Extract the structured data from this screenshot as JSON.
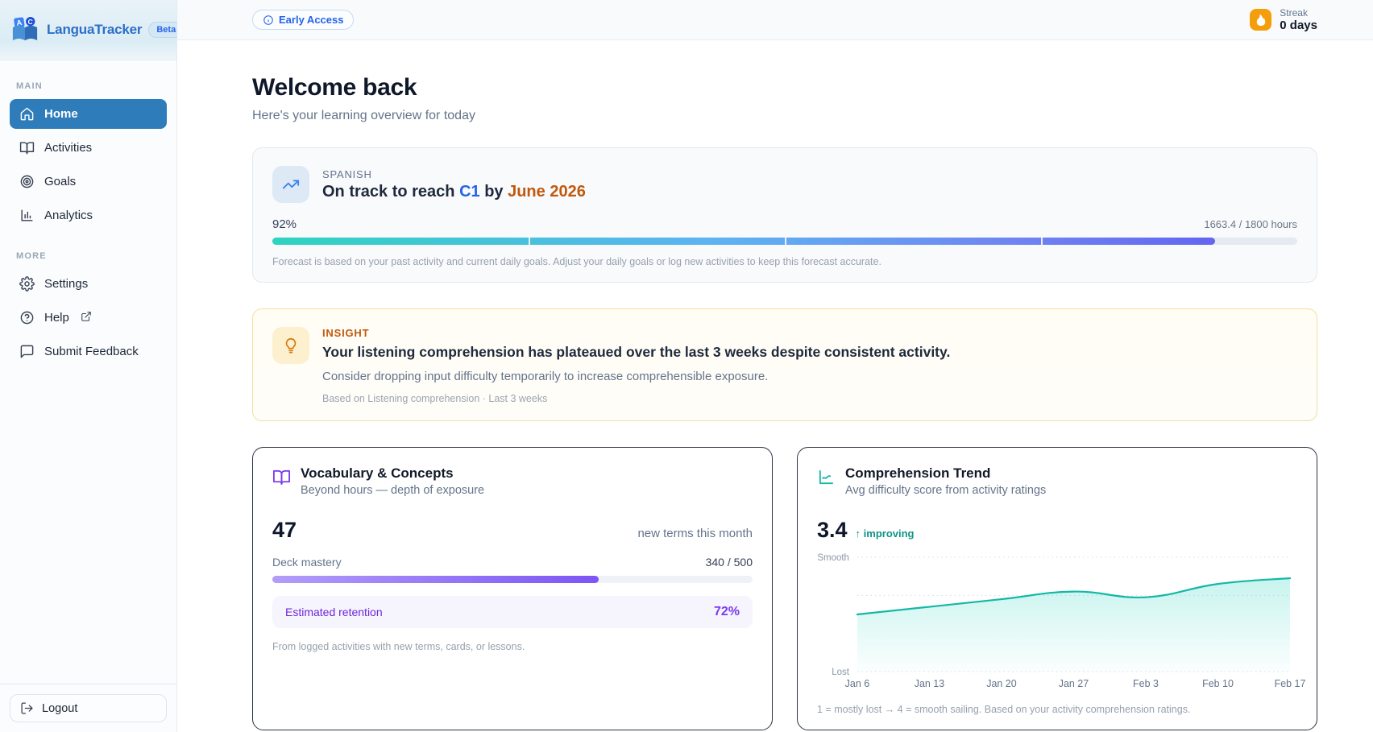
{
  "sidebar": {
    "brand": {
      "name": "LanguaTracker",
      "badge": "Beta"
    },
    "sections": [
      {
        "label": "MAIN",
        "items": [
          {
            "label": "Home"
          },
          {
            "label": "Activities"
          },
          {
            "label": "Goals"
          },
          {
            "label": "Analytics"
          }
        ]
      },
      {
        "label": "MORE",
        "items": [
          {
            "label": "Settings"
          },
          {
            "label": "Help"
          },
          {
            "label": "Submit Feedback"
          }
        ]
      }
    ],
    "logout_label": "Logout"
  },
  "topbar": {
    "early_access_label": "Early Access",
    "streak": {
      "label": "Streak",
      "value": "0 days"
    }
  },
  "header": {
    "title": "Welcome back",
    "subtitle": "Here's your learning overview for today"
  },
  "forecast": {
    "language": "SPANISH",
    "title_prefix": "On track to reach ",
    "level": "C1",
    "title_mid": " by ",
    "date": "June 2026",
    "percent": "92%",
    "percent_value": 92,
    "hours": "1663.4 / 1800 hours",
    "note": "Forecast is based on your past activity and current daily goals. Adjust your daily goals or log new activities to keep this forecast accurate."
  },
  "insight": {
    "label": "INSIGHT",
    "headline": "Your listening comprehension has plateaued over the last 3 weeks despite consistent activity.",
    "suggestion": "Consider dropping input difficulty temporarily to increase comprehensible exposure.",
    "meta": "Based on Listening comprehension · Last 3 weeks"
  },
  "vocabulary": {
    "title": "Vocabulary & Concepts",
    "subtitle": "Beyond hours — depth of exposure",
    "stat_value": "47",
    "stat_label": "new terms this month",
    "mastery_label": "Deck mastery",
    "mastery_value": "340 / 500",
    "mastery_percent": 68,
    "retention_label": "Estimated retention",
    "retention_value": "72%",
    "note": "From logged activities with new terms, cards, or lessons."
  },
  "trend": {
    "title": "Comprehension Trend",
    "subtitle": "Avg difficulty score from activity ratings",
    "stat_value": "3.4",
    "stat_badge": "↑ improving",
    "note": "1 = mostly lost → 4 = smooth sailing. Based on your activity comprehension ratings."
  },
  "chart_data": {
    "type": "area",
    "x": [
      "Jan 6",
      "Jan 13",
      "Jan 20",
      "Jan 27",
      "Feb 3",
      "Feb 10",
      "Feb 17"
    ],
    "values": [
      2.5,
      2.7,
      2.9,
      3.1,
      2.95,
      3.3,
      3.45
    ],
    "ylim": [
      1,
      4
    ],
    "y_axis_top_label": "Smooth",
    "y_axis_bottom_label": "Lost",
    "line_color": "#14b8a6",
    "fill_color": "#2dd4bf",
    "grid": "dotted",
    "legend": "none"
  },
  "colors": {
    "accent_blue": "#2e7cba",
    "brand_blue": "#2b6fc7",
    "level_blue": "#2563eb",
    "date_orange": "#c2580c",
    "purple": "#7c3aed",
    "teal": "#14b8a6",
    "streak_orange": "#f59e0b"
  }
}
